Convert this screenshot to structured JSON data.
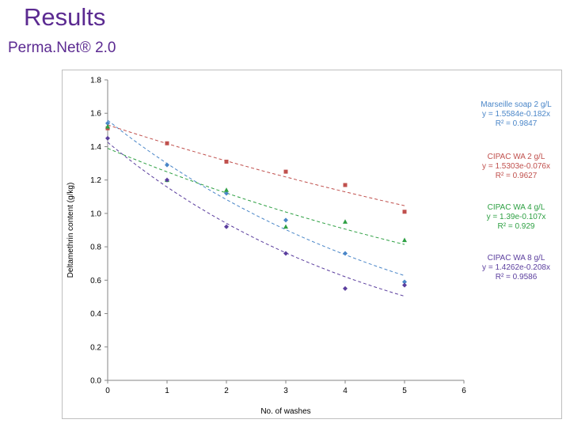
{
  "slide": {
    "title": "Results",
    "subtitle": "Perma.Net® 2.0"
  },
  "chart_data": {
    "type": "scatter",
    "title": "",
    "xlabel": "No. of washes",
    "ylabel": "Deltamethrin content (g/kg)",
    "xlim": [
      0,
      6
    ],
    "ylim": [
      0,
      1.8
    ],
    "x_ticks": [
      "0",
      "1",
      "2",
      "3",
      "4",
      "5",
      "6"
    ],
    "y_ticks": [
      "0.0",
      "0.2",
      "0.4",
      "0.6",
      "0.8",
      "1.0",
      "1.2",
      "1.4",
      "1.6",
      "1.8"
    ],
    "grid": false,
    "legend_position": "right",
    "series": [
      {
        "name": "Marseille soap 2 g/L",
        "equation": "y = 1.5584e-0.182x",
        "r2": "R² = 0.9847",
        "color": "#4a86c8",
        "marker": "diamond",
        "fit": {
          "a": 1.5584,
          "b": -0.182
        },
        "x": [
          0,
          1,
          2,
          3,
          4,
          5
        ],
        "y": [
          1.54,
          1.29,
          1.12,
          0.96,
          0.76,
          0.59
        ]
      },
      {
        "name": "CIPAC WA 2 g/L",
        "equation": "y = 1.5303e-0.076x",
        "r2": "R² = 0.9627",
        "color": "#c0504d",
        "marker": "square",
        "fit": {
          "a": 1.5303,
          "b": -0.076
        },
        "x": [
          0,
          1,
          2,
          3,
          4,
          5
        ],
        "y": [
          1.51,
          1.42,
          1.31,
          1.25,
          1.17,
          1.01
        ]
      },
      {
        "name": "CIPAC WA 4 g/L",
        "equation": "y = 1.39e-0.107x",
        "r2": "R² = 0.929",
        "color": "#2ea043",
        "marker": "triangle",
        "fit": {
          "a": 1.39,
          "b": -0.107
        },
        "x": [
          0,
          1,
          2,
          3,
          4,
          5
        ],
        "y": [
          1.52,
          1.2,
          1.14,
          0.92,
          0.95,
          0.84
        ]
      },
      {
        "name": "CIPAC WA 8 g/L",
        "equation": "y = 1.4262e-0.208x",
        "r2": "R² = 0.9586",
        "color": "#5b3e9e",
        "marker": "diamond",
        "fit": {
          "a": 1.4262,
          "b": -0.208
        },
        "x": [
          0,
          1,
          2,
          3,
          4,
          5
        ],
        "y": [
          1.45,
          1.2,
          0.92,
          0.76,
          0.55,
          0.57
        ]
      }
    ]
  }
}
